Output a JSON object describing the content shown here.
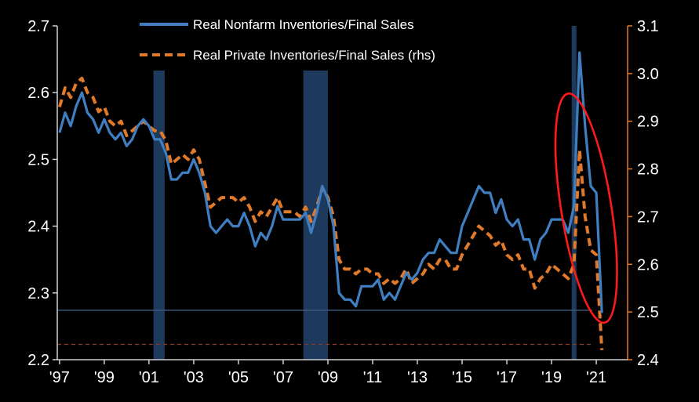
{
  "chart_data": {
    "type": "line",
    "title": "",
    "legend_position": "top-center",
    "grid": false,
    "x_range": [
      1996.9,
      2022.4
    ],
    "x_ticks": [
      {
        "value": 1997,
        "label": "'97"
      },
      {
        "value": 1999,
        "label": "'99"
      },
      {
        "value": 2001,
        "label": "'01"
      },
      {
        "value": 2003,
        "label": "'03"
      },
      {
        "value": 2005,
        "label": "'05"
      },
      {
        "value": 2007,
        "label": "'07"
      },
      {
        "value": 2009,
        "label": "'09"
      },
      {
        "value": 2011,
        "label": "'11"
      },
      {
        "value": 2013,
        "label": "'13"
      },
      {
        "value": 2015,
        "label": "'15"
      },
      {
        "value": 2017,
        "label": "'17"
      },
      {
        "value": 2019,
        "label": "'19"
      },
      {
        "value": 2021,
        "label": "'21"
      }
    ],
    "y_left": {
      "range": [
        2.2,
        2.7
      ],
      "ticks": [
        "2.7",
        "2.6",
        "2.5",
        "2.4",
        "2.3",
        "2.2"
      ]
    },
    "y_right": {
      "range": [
        2.4,
        3.1
      ],
      "ticks": [
        "3.1",
        "3.0",
        "2.9",
        "2.8",
        "2.7",
        "2.6",
        "2.5",
        "2.4"
      ],
      "color": "#e07a2a"
    },
    "recessions": [
      [
        2001.2,
        2001.7
      ],
      [
        2007.9,
        2009.0
      ],
      [
        2019.9,
        2020.1
      ]
    ],
    "series": [
      {
        "name": "Real Nonfarm Inventories/Final Sales",
        "axis": "left",
        "color": "#3f7fc1",
        "style": "solid",
        "x": [
          1997.0,
          1997.25,
          1997.5,
          1997.75,
          1998.0,
          1998.25,
          1998.5,
          1998.75,
          1999.0,
          1999.25,
          1999.5,
          1999.75,
          2000.0,
          2000.25,
          2000.5,
          2000.75,
          2001.0,
          2001.25,
          2001.5,
          2001.75,
          2002.0,
          2002.25,
          2002.5,
          2002.75,
          2003.0,
          2003.25,
          2003.5,
          2003.75,
          2004.0,
          2004.25,
          2004.5,
          2004.75,
          2005.0,
          2005.25,
          2005.5,
          2005.75,
          2006.0,
          2006.25,
          2006.5,
          2006.75,
          2007.0,
          2007.25,
          2007.5,
          2007.75,
          2008.0,
          2008.25,
          2008.5,
          2008.75,
          2009.0,
          2009.25,
          2009.5,
          2009.75,
          2010.0,
          2010.25,
          2010.5,
          2010.75,
          2011.0,
          2011.25,
          2011.5,
          2011.75,
          2012.0,
          2012.25,
          2012.5,
          2012.75,
          2013.0,
          2013.25,
          2013.5,
          2013.75,
          2014.0,
          2014.25,
          2014.5,
          2014.75,
          2015.0,
          2015.25,
          2015.5,
          2015.75,
          2016.0,
          2016.25,
          2016.5,
          2016.75,
          2017.0,
          2017.25,
          2017.5,
          2017.75,
          2018.0,
          2018.25,
          2018.5,
          2018.75,
          2019.0,
          2019.25,
          2019.5,
          2019.75,
          2020.0,
          2020.25,
          2020.5,
          2020.75,
          2021.0,
          2021.25
        ],
        "y": [
          2.54,
          2.57,
          2.55,
          2.58,
          2.6,
          2.57,
          2.56,
          2.54,
          2.56,
          2.54,
          2.53,
          2.54,
          2.52,
          2.53,
          2.55,
          2.56,
          2.55,
          2.53,
          2.53,
          2.51,
          2.47,
          2.47,
          2.48,
          2.48,
          2.5,
          2.48,
          2.45,
          2.4,
          2.39,
          2.4,
          2.41,
          2.4,
          2.4,
          2.42,
          2.4,
          2.37,
          2.39,
          2.38,
          2.4,
          2.43,
          2.41,
          2.41,
          2.41,
          2.41,
          2.42,
          2.39,
          2.42,
          2.46,
          2.44,
          2.4,
          2.3,
          2.29,
          2.29,
          2.28,
          2.31,
          2.31,
          2.31,
          2.32,
          2.29,
          2.3,
          2.29,
          2.31,
          2.33,
          2.32,
          2.33,
          2.35,
          2.36,
          2.36,
          2.38,
          2.37,
          2.36,
          2.36,
          2.4,
          2.42,
          2.44,
          2.46,
          2.45,
          2.45,
          2.42,
          2.44,
          2.41,
          2.4,
          2.41,
          2.38,
          2.38,
          2.35,
          2.38,
          2.39,
          2.41,
          2.41,
          2.41,
          2.39,
          2.43,
          2.66,
          2.55,
          2.46,
          2.45,
          2.27
        ]
      },
      {
        "name": "Real Private Inventories/Final Sales (rhs)",
        "axis": "right",
        "color": "#e07a2a",
        "style": "dashed",
        "x": [
          1997.0,
          1997.25,
          1997.5,
          1997.75,
          1998.0,
          1998.25,
          1998.5,
          1998.75,
          1999.0,
          1999.25,
          1999.5,
          1999.75,
          2000.0,
          2000.25,
          2000.5,
          2000.75,
          2001.0,
          2001.25,
          2001.5,
          2001.75,
          2002.0,
          2002.25,
          2002.5,
          2002.75,
          2003.0,
          2003.25,
          2003.5,
          2003.75,
          2004.0,
          2004.25,
          2004.5,
          2004.75,
          2005.0,
          2005.25,
          2005.5,
          2005.75,
          2006.0,
          2006.25,
          2006.5,
          2006.75,
          2007.0,
          2007.25,
          2007.5,
          2007.75,
          2008.0,
          2008.25,
          2008.5,
          2008.75,
          2009.0,
          2009.25,
          2009.5,
          2009.75,
          2010.0,
          2010.25,
          2010.5,
          2010.75,
          2011.0,
          2011.25,
          2011.5,
          2011.75,
          2012.0,
          2012.25,
          2012.5,
          2012.75,
          2013.0,
          2013.25,
          2013.5,
          2013.75,
          2014.0,
          2014.25,
          2014.5,
          2014.75,
          2015.0,
          2015.25,
          2015.5,
          2015.75,
          2016.0,
          2016.25,
          2016.5,
          2016.75,
          2017.0,
          2017.25,
          2017.5,
          2017.75,
          2018.0,
          2018.25,
          2018.5,
          2018.75,
          2019.0,
          2019.25,
          2019.5,
          2019.75,
          2020.0,
          2020.25,
          2020.5,
          2020.75,
          2021.0,
          2021.25
        ],
        "y": [
          2.93,
          2.97,
          2.95,
          2.98,
          2.99,
          2.96,
          2.95,
          2.92,
          2.93,
          2.9,
          2.89,
          2.9,
          2.87,
          2.88,
          2.89,
          2.9,
          2.89,
          2.88,
          2.88,
          2.86,
          2.81,
          2.82,
          2.83,
          2.82,
          2.84,
          2.82,
          2.77,
          2.72,
          2.73,
          2.74,
          2.74,
          2.74,
          2.73,
          2.74,
          2.72,
          2.69,
          2.71,
          2.7,
          2.72,
          2.74,
          2.71,
          2.71,
          2.71,
          2.7,
          2.72,
          2.69,
          2.72,
          2.76,
          2.74,
          2.7,
          2.61,
          2.59,
          2.59,
          2.58,
          2.59,
          2.59,
          2.58,
          2.58,
          2.56,
          2.57,
          2.56,
          2.57,
          2.59,
          2.56,
          2.57,
          2.58,
          2.6,
          2.59,
          2.61,
          2.61,
          2.59,
          2.59,
          2.62,
          2.64,
          2.66,
          2.68,
          2.67,
          2.66,
          2.64,
          2.65,
          2.62,
          2.61,
          2.62,
          2.59,
          2.59,
          2.55,
          2.57,
          2.58,
          2.6,
          2.59,
          2.58,
          2.57,
          2.6,
          2.84,
          2.7,
          2.63,
          2.62,
          2.42
        ]
      }
    ],
    "reference_lines": [
      {
        "axis": "left",
        "value": 2.274,
        "color": "#3f5a80",
        "style": "solid"
      },
      {
        "axis": "right",
        "value": 2.432,
        "color": "#8a3a22",
        "style": "dashed"
      }
    ],
    "annotation": {
      "type": "ellipse",
      "color": "#ff1a1a",
      "center_x": 2020.55,
      "center_y_left": 2.427
    }
  }
}
